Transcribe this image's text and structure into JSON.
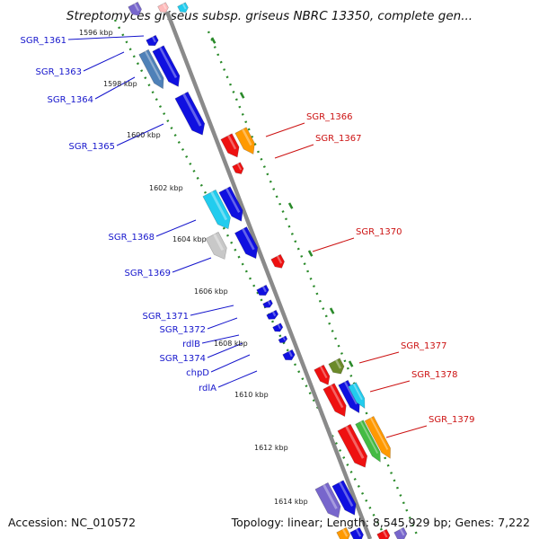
{
  "header": {
    "title": "Streptomyces griseus subsp. griseus NBRC 13350, complete gen..."
  },
  "footer": {
    "accession": "Accession: NC_010572",
    "topology": "Topology: linear; Length: 8,545,929 bp; Genes: 7,222"
  },
  "ruler": {
    "labels": [
      "1596 kbp",
      "1598 kbp",
      "1600 kbp",
      "1602 kbp",
      "1604 kbp",
      "1606 kbp",
      "1608 kbp",
      "1610 kbp",
      "1612 kbp",
      "1614 kbp"
    ]
  },
  "genes": {
    "left": [
      "SGR_1361",
      "SGR_1363",
      "SGR_1364",
      "SGR_1365",
      "SGR_1368",
      "SGR_1369",
      "SGR_1371",
      "SGR_1372",
      "rdlB",
      "SGR_1374",
      "chpD",
      "rdlA"
    ],
    "right": [
      "SGR_1366",
      "SGR_1367",
      "SGR_1370",
      "SGR_1377",
      "SGR_1378",
      "SGR_1379"
    ]
  },
  "colors": {
    "left_label": "#1515cc",
    "right_label": "#cc1111",
    "backbone": "#8a8a8a",
    "tick": "#2a8a2a",
    "blue": "#1010e0",
    "red": "#ee1111",
    "orange": "#ff9900",
    "cyan": "#22ccee",
    "steel": "#4f81b8",
    "purple": "#7766cc",
    "green": "#44bb44",
    "olive": "#6b8a2a",
    "gray": "#c8c8c8"
  }
}
